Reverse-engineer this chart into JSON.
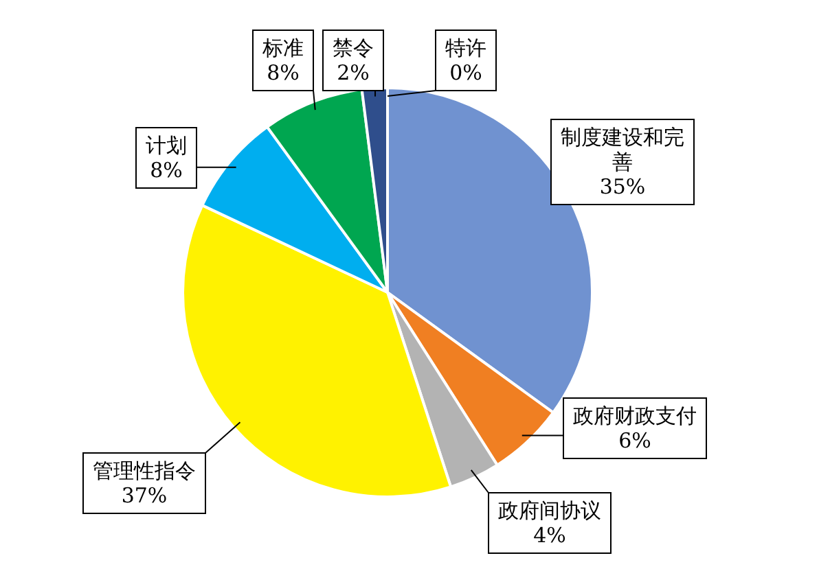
{
  "chart_data": {
    "type": "pie",
    "categories": [
      "制度建设和完善",
      "政府财政支付",
      "政府间协议",
      "管理性指令",
      "计划",
      "标准",
      "禁令",
      "特许"
    ],
    "values": [
      35,
      6,
      4,
      37,
      8,
      8,
      2,
      0
    ],
    "value_labels": [
      "35%",
      "6%",
      "4%",
      "37%",
      "8%",
      "8%",
      "2%",
      "0%"
    ],
    "colors": [
      "#7092d0",
      "#f07f22",
      "#b3b3b3",
      "#fff200",
      "#00aeef",
      "#00a650",
      "#2f4e8c",
      "#dde3f0"
    ]
  }
}
